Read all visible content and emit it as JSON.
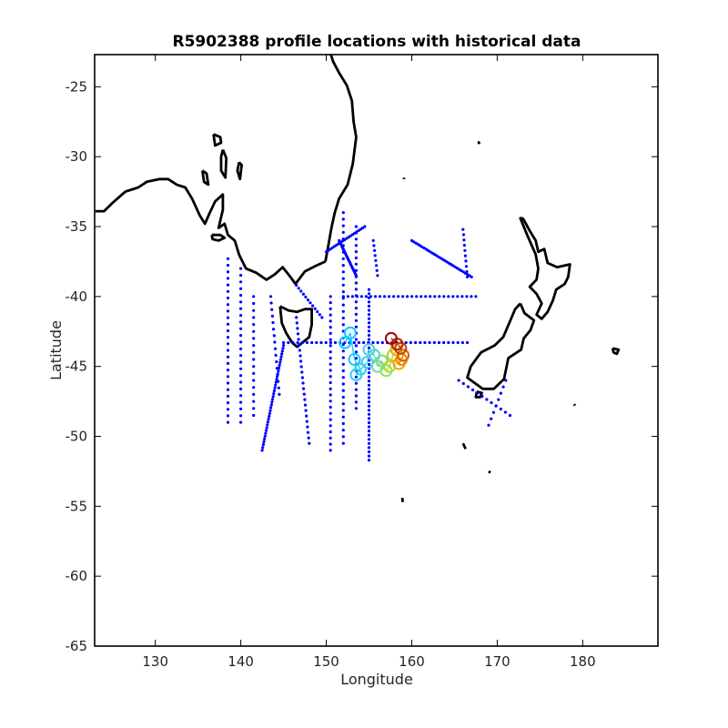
{
  "chart_data": {
    "type": "scatter",
    "title": "R5902388 profile locations with historical data",
    "xlabel": "Longitude",
    "ylabel": "Latitude",
    "xlim": [
      122.9,
      188.8
    ],
    "ylim": [
      -65.0,
      -22.7
    ],
    "xticks": [
      130,
      140,
      150,
      160,
      170,
      180
    ],
    "yticks": [
      -25,
      -30,
      -35,
      -40,
      -45,
      -50,
      -55,
      -60,
      -65
    ],
    "grid": false,
    "legend": "none",
    "colors": {
      "coastline": "#000000",
      "historical": "#0000ff",
      "profile_start": "#00c8ff",
      "profile_mid": "#9ae63c",
      "profile_late": "#ffa000",
      "profile_end": "#a00000"
    },
    "coastlines": [
      {
        "name": "Australia south coast",
        "points": [
          [
            123.0,
            -33.9
          ],
          [
            124.0,
            -33.9
          ],
          [
            125.0,
            -33.3
          ],
          [
            126.5,
            -32.5
          ],
          [
            128.0,
            -32.2
          ],
          [
            129.0,
            -31.8
          ],
          [
            130.5,
            -31.6
          ],
          [
            131.5,
            -31.6
          ],
          [
            132.5,
            -32.0
          ],
          [
            133.5,
            -32.2
          ],
          [
            134.3,
            -33.0
          ],
          [
            135.2,
            -34.2
          ],
          [
            135.8,
            -34.8
          ],
          [
            136.3,
            -34.1
          ],
          [
            137.0,
            -33.2
          ],
          [
            137.9,
            -32.7
          ],
          [
            137.9,
            -33.8
          ],
          [
            137.4,
            -35.1
          ],
          [
            138.1,
            -34.8
          ],
          [
            138.5,
            -35.6
          ],
          [
            139.3,
            -36.0
          ],
          [
            139.8,
            -37.0
          ],
          [
            140.6,
            -38.0
          ],
          [
            141.8,
            -38.3
          ],
          [
            143.0,
            -38.8
          ],
          [
            144.0,
            -38.4
          ],
          [
            144.9,
            -37.9
          ],
          [
            145.8,
            -38.6
          ],
          [
            146.4,
            -39.1
          ],
          [
            147.5,
            -38.2
          ],
          [
            148.8,
            -37.8
          ],
          [
            149.9,
            -37.5
          ]
        ]
      },
      {
        "name": "Australia east coast",
        "points": [
          [
            149.9,
            -37.5
          ],
          [
            150.2,
            -36.5
          ],
          [
            150.6,
            -35.1
          ],
          [
            151.0,
            -34.0
          ],
          [
            151.5,
            -33.0
          ],
          [
            152.5,
            -32.0
          ],
          [
            153.1,
            -30.5
          ],
          [
            153.5,
            -28.6
          ],
          [
            153.2,
            -27.5
          ],
          [
            153.0,
            -26.0
          ],
          [
            152.4,
            -24.9
          ],
          [
            151.5,
            -24.0
          ],
          [
            150.8,
            -23.2
          ],
          [
            150.5,
            -22.6
          ]
        ]
      },
      {
        "name": "Tasmania",
        "points": [
          [
            144.6,
            -40.7
          ],
          [
            145.6,
            -41.0
          ],
          [
            146.6,
            -41.1
          ],
          [
            147.5,
            -40.9
          ],
          [
            148.3,
            -40.9
          ],
          [
            148.3,
            -42.0
          ],
          [
            148.0,
            -42.9
          ],
          [
            147.2,
            -43.3
          ],
          [
            146.6,
            -43.6
          ],
          [
            146.0,
            -43.3
          ],
          [
            145.3,
            -42.6
          ],
          [
            144.8,
            -41.9
          ],
          [
            144.6,
            -40.7
          ]
        ]
      },
      {
        "name": "Kangaroo Island",
        "points": [
          [
            136.6,
            -35.6
          ],
          [
            137.6,
            -35.6
          ],
          [
            138.1,
            -35.8
          ],
          [
            137.4,
            -36.0
          ],
          [
            136.7,
            -35.9
          ],
          [
            136.6,
            -35.6
          ]
        ]
      },
      {
        "name": "Lake Torrens",
        "points": [
          [
            137.9,
            -29.5
          ],
          [
            138.3,
            -30.1
          ],
          [
            138.2,
            -31.5
          ],
          [
            137.7,
            -31.0
          ],
          [
            137.7,
            -30.0
          ],
          [
            137.9,
            -29.5
          ]
        ]
      },
      {
        "name": "Lake Eyre",
        "points": [
          [
            136.8,
            -28.4
          ],
          [
            137.6,
            -28.6
          ],
          [
            137.7,
            -29.0
          ],
          [
            137.0,
            -29.2
          ],
          [
            136.8,
            -28.4
          ]
        ]
      },
      {
        "name": "Lake Gairdner",
        "points": [
          [
            135.5,
            -31.0
          ],
          [
            136.0,
            -31.2
          ],
          [
            136.2,
            -32.0
          ],
          [
            135.7,
            -31.8
          ],
          [
            135.5,
            -31.0
          ]
        ]
      },
      {
        "name": "Lake Frome",
        "points": [
          [
            139.8,
            -30.4
          ],
          [
            140.1,
            -30.6
          ],
          [
            139.9,
            -31.6
          ],
          [
            139.6,
            -31.0
          ],
          [
            139.8,
            -30.4
          ]
        ]
      },
      {
        "name": "New Zealand North Island",
        "points": [
          [
            173.0,
            -34.4
          ],
          [
            173.8,
            -35.3
          ],
          [
            174.5,
            -36.0
          ],
          [
            174.8,
            -36.8
          ],
          [
            175.5,
            -36.6
          ],
          [
            175.9,
            -37.6
          ],
          [
            177.0,
            -37.9
          ],
          [
            178.5,
            -37.7
          ],
          [
            178.3,
            -38.6
          ],
          [
            177.9,
            -39.1
          ],
          [
            176.9,
            -39.5
          ],
          [
            176.5,
            -40.3
          ],
          [
            175.9,
            -41.1
          ],
          [
            175.2,
            -41.6
          ],
          [
            174.6,
            -41.3
          ],
          [
            175.2,
            -40.5
          ],
          [
            174.6,
            -39.8
          ],
          [
            173.8,
            -39.3
          ],
          [
            174.6,
            -38.8
          ],
          [
            174.8,
            -38.0
          ],
          [
            174.5,
            -37.0
          ],
          [
            173.5,
            -35.6
          ],
          [
            172.7,
            -34.4
          ],
          [
            173.0,
            -34.4
          ]
        ]
      },
      {
        "name": "New Zealand South Island",
        "points": [
          [
            172.7,
            -40.5
          ],
          [
            173.2,
            -41.2
          ],
          [
            174.3,
            -41.7
          ],
          [
            173.9,
            -42.4
          ],
          [
            173.1,
            -43.0
          ],
          [
            172.8,
            -43.8
          ],
          [
            171.3,
            -44.4
          ],
          [
            170.8,
            -45.9
          ],
          [
            169.6,
            -46.6
          ],
          [
            168.3,
            -46.6
          ],
          [
            167.4,
            -46.2
          ],
          [
            166.5,
            -45.8
          ],
          [
            166.9,
            -45.0
          ],
          [
            168.1,
            -44.0
          ],
          [
            169.7,
            -43.5
          ],
          [
            170.7,
            -42.9
          ],
          [
            171.4,
            -41.9
          ],
          [
            172.1,
            -40.9
          ],
          [
            172.7,
            -40.5
          ]
        ]
      },
      {
        "name": "Stewart Island",
        "points": [
          [
            167.6,
            -46.8
          ],
          [
            168.2,
            -46.9
          ],
          [
            168.0,
            -47.2
          ],
          [
            167.5,
            -47.2
          ],
          [
            167.6,
            -46.8
          ]
        ]
      },
      {
        "name": "Chatham Islands",
        "points": [
          [
            183.5,
            -43.7
          ],
          [
            184.2,
            -43.8
          ],
          [
            184.0,
            -44.1
          ],
          [
            183.6,
            -44.0
          ],
          [
            183.5,
            -43.7
          ]
        ]
      },
      {
        "name": "Lord Howe Island",
        "points": [
          [
            159.1,
            -31.5
          ],
          [
            159.1,
            -31.6
          ]
        ]
      },
      {
        "name": "Macquarie Island",
        "points": [
          [
            158.9,
            -54.4
          ],
          [
            158.95,
            -54.7
          ]
        ]
      },
      {
        "name": "Auckland Islands",
        "points": [
          [
            166.0,
            -50.5
          ],
          [
            166.3,
            -50.9
          ]
        ]
      },
      {
        "name": "Campbell Island",
        "points": [
          [
            169.0,
            -52.5
          ],
          [
            169.2,
            -52.6
          ]
        ]
      },
      {
        "name": "Bounty Islands",
        "points": [
          [
            179.0,
            -47.7
          ],
          [
            179.1,
            -47.8
          ]
        ]
      },
      {
        "name": "Antipodes",
        "points": [
          [
            167.8,
            -28.9
          ],
          [
            167.9,
            -29.1
          ]
        ]
      }
    ],
    "historical_segments": [
      {
        "name": "S-N line 138.5E",
        "start": [
          138.5,
          -37.3
        ],
        "end": [
          138.5,
          -49.0
        ],
        "n": 26
      },
      {
        "name": "S-N line 140E",
        "start": [
          140.0,
          -38.0
        ],
        "end": [
          140.0,
          -49.0
        ],
        "n": 24
      },
      {
        "name": "Line off Tasmania diag",
        "start": [
          145.0,
          -43.5
        ],
        "end": [
          142.5,
          -51.0
        ],
        "n": 38
      },
      {
        "name": "Line 141 vert",
        "start": [
          141.5,
          -40.0
        ],
        "end": [
          141.5,
          -48.5
        ],
        "n": 18
      },
      {
        "name": "Diag west",
        "start": [
          143.5,
          -40.0
        ],
        "end": [
          144.5,
          -47.0
        ],
        "n": 16
      },
      {
        "name": "Line 146-150",
        "start": [
          146.5,
          -41.5
        ],
        "end": [
          148.0,
          -50.5
        ],
        "n": 24
      },
      {
        "name": "Line 150.5 vert",
        "start": [
          150.5,
          -40.0
        ],
        "end": [
          150.5,
          -51.0
        ],
        "n": 26
      },
      {
        "name": "Line 152 vert",
        "start": [
          152.0,
          -34.0
        ],
        "end": [
          152.0,
          -50.5
        ],
        "n": 36
      },
      {
        "name": "Line 155 vert",
        "start": [
          155.0,
          -39.5
        ],
        "end": [
          155.0,
          -51.7
        ],
        "n": 42
      },
      {
        "name": "Line 153.5 vert",
        "start": [
          153.5,
          -35.0
        ],
        "end": [
          153.5,
          -48.0
        ],
        "n": 30
      },
      {
        "name": "Line east 40S",
        "start": [
          152.0,
          -40.0
        ],
        "end": [
          167.5,
          -40.0
        ],
        "n": 30
      },
      {
        "name": "Line east 43.3S",
        "start": [
          145.0,
          -43.3
        ],
        "end": [
          166.5,
          -43.3
        ],
        "n": 40
      },
      {
        "name": "Tasman diag NE",
        "start": [
          160.0,
          -36.0
        ],
        "end": [
          167.0,
          -38.6
        ],
        "n": 30
      },
      {
        "name": "Coast cluster",
        "start": [
          151.5,
          -36.0
        ],
        "end": [
          153.5,
          -38.5
        ],
        "n": 24
      },
      {
        "name": "Coast cluster 2",
        "start": [
          150.0,
          -36.8
        ],
        "end": [
          154.5,
          -35.0
        ],
        "n": 20
      },
      {
        "name": "Tasman N",
        "start": [
          155.5,
          -36.0
        ],
        "end": [
          156.0,
          -38.5
        ],
        "n": 8
      },
      {
        "name": "Line 166 vert",
        "start": [
          166.0,
          -35.2
        ],
        "end": [
          166.5,
          -38.6
        ],
        "n": 10
      },
      {
        "name": "SE cluster",
        "start": [
          165.5,
          -46.0
        ],
        "end": [
          171.5,
          -48.5
        ],
        "n": 12
      },
      {
        "name": "Mac ridge",
        "start": [
          169.0,
          -49.2
        ],
        "end": [
          171.0,
          -46.0
        ],
        "n": 8
      },
      {
        "name": "Bass Strait",
        "start": [
          146.5,
          -39.2
        ],
        "end": [
          149.5,
          -41.5
        ],
        "n": 12
      }
    ],
    "series": [
      {
        "name": "",
        "description": "profile trajectory",
        "x": [
          152.2,
          152.8,
          153.3,
          154.0,
          153.5,
          154.8,
          155.0,
          155.6,
          156.0,
          156.5,
          157.0,
          157.4,
          157.8,
          158.2,
          158.5,
          158.8,
          159.0,
          158.7,
          158.3,
          157.6
        ],
        "y": [
          -43.3,
          -42.6,
          -44.5,
          -45.2,
          -45.6,
          -44.7,
          -43.8,
          -44.2,
          -45.0,
          -44.6,
          -45.3,
          -45.0,
          -44.2,
          -43.8,
          -44.8,
          -44.5,
          -44.2,
          -43.7,
          -43.4,
          -43.0
        ]
      }
    ]
  }
}
